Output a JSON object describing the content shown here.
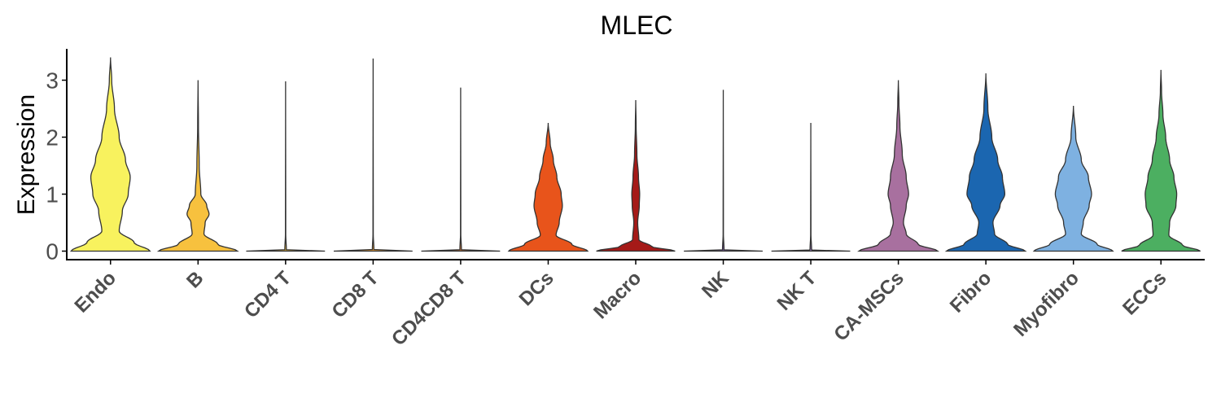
{
  "chart_data": {
    "type": "violin",
    "title": "MLEC",
    "ylabel": "Expression",
    "xlabel": "",
    "ylim": [
      -0.15,
      3.55
    ],
    "yticks": [
      0,
      1,
      2,
      3
    ],
    "grid": false,
    "legend": "none",
    "categories": [
      "Endo",
      "B",
      "CD4 T",
      "CD8 T",
      "CD4CD8 T",
      "DCs",
      "Macro",
      "NK",
      "NK T",
      "CA-MSCs",
      "Fibro",
      "Myofibro",
      "ECCs"
    ],
    "colors": [
      "#F8F25E",
      "#F7C13E",
      "#F7C13E",
      "#F4A43A",
      "#EE8133",
      "#E8541B",
      "#A51A18",
      "#7A5AA6",
      "#8E6FB1",
      "#A8709F",
      "#1B66B0",
      "#7EB1E1",
      "#4CAF61"
    ],
    "series": [
      {
        "name": "Endo",
        "max": 3.4,
        "profile": [
          [
            0,
            1.0
          ],
          [
            0.15,
            0.6
          ],
          [
            0.35,
            0.22
          ],
          [
            0.7,
            0.3
          ],
          [
            1.0,
            0.45
          ],
          [
            1.3,
            0.5
          ],
          [
            1.6,
            0.38
          ],
          [
            2.0,
            0.22
          ],
          [
            2.5,
            0.1
          ],
          [
            3.0,
            0.03
          ],
          [
            3.4,
            0
          ]
        ]
      },
      {
        "name": "B",
        "max": 3.0,
        "profile": [
          [
            0,
            1.0
          ],
          [
            0.12,
            0.5
          ],
          [
            0.3,
            0.15
          ],
          [
            0.5,
            0.18
          ],
          [
            0.65,
            0.28
          ],
          [
            0.8,
            0.22
          ],
          [
            1.0,
            0.07
          ],
          [
            1.5,
            0.03
          ],
          [
            2.2,
            0.01
          ],
          [
            3.0,
            0
          ]
        ]
      },
      {
        "name": "CD4 T",
        "max": 2.98,
        "profile": [
          [
            0,
            1.0
          ],
          [
            0.02,
            0.02
          ],
          [
            0.3,
            0.004
          ],
          [
            2.98,
            0
          ]
        ]
      },
      {
        "name": "CD8 T",
        "max": 3.38,
        "profile": [
          [
            0,
            1.0
          ],
          [
            0.02,
            0.02
          ],
          [
            0.3,
            0.004
          ],
          [
            3.38,
            0
          ]
        ]
      },
      {
        "name": "CD4CD8 T",
        "max": 2.87,
        "profile": [
          [
            0,
            1.0
          ],
          [
            0.02,
            0.02
          ],
          [
            0.3,
            0.004
          ],
          [
            2.87,
            0
          ]
        ]
      },
      {
        "name": "DCs",
        "max": 2.25,
        "profile": [
          [
            0,
            1.0
          ],
          [
            0.12,
            0.6
          ],
          [
            0.28,
            0.2
          ],
          [
            0.5,
            0.28
          ],
          [
            0.8,
            0.36
          ],
          [
            1.0,
            0.33
          ],
          [
            1.3,
            0.22
          ],
          [
            1.6,
            0.13
          ],
          [
            1.9,
            0.05
          ],
          [
            2.25,
            0
          ]
        ]
      },
      {
        "name": "Macro",
        "max": 2.65,
        "profile": [
          [
            0,
            1.0
          ],
          [
            0.08,
            0.4
          ],
          [
            0.2,
            0.08
          ],
          [
            0.5,
            0.05
          ],
          [
            0.8,
            0.09
          ],
          [
            1.0,
            0.1
          ],
          [
            1.3,
            0.07
          ],
          [
            1.7,
            0.03
          ],
          [
            2.2,
            0.01
          ],
          [
            2.65,
            0
          ]
        ]
      },
      {
        "name": "NK",
        "max": 2.83,
        "profile": [
          [
            0,
            1.0
          ],
          [
            0.02,
            0.02
          ],
          [
            0.3,
            0.004
          ],
          [
            2.83,
            0
          ]
        ]
      },
      {
        "name": "NK T",
        "max": 2.25,
        "profile": [
          [
            0,
            1.0
          ],
          [
            0.02,
            0.02
          ],
          [
            0.3,
            0.004
          ],
          [
            2.25,
            0
          ]
        ]
      },
      {
        "name": "CA-MSCs",
        "max": 3.0,
        "profile": [
          [
            0,
            1.0
          ],
          [
            0.12,
            0.5
          ],
          [
            0.3,
            0.2
          ],
          [
            0.5,
            0.13
          ],
          [
            0.8,
            0.2
          ],
          [
            1.0,
            0.26
          ],
          [
            1.3,
            0.2
          ],
          [
            1.7,
            0.1
          ],
          [
            2.2,
            0.04
          ],
          [
            2.6,
            0.015
          ],
          [
            3.0,
            0
          ]
        ]
      },
      {
        "name": "Fibro",
        "max": 3.12,
        "profile": [
          [
            0,
            1.0
          ],
          [
            0.12,
            0.55
          ],
          [
            0.3,
            0.22
          ],
          [
            0.5,
            0.18
          ],
          [
            0.8,
            0.36
          ],
          [
            1.0,
            0.48
          ],
          [
            1.3,
            0.42
          ],
          [
            1.6,
            0.3
          ],
          [
            2.0,
            0.15
          ],
          [
            2.5,
            0.05
          ],
          [
            3.12,
            0
          ]
        ]
      },
      {
        "name": "Myofibro",
        "max": 2.55,
        "profile": [
          [
            0,
            1.0
          ],
          [
            0.12,
            0.6
          ],
          [
            0.3,
            0.2
          ],
          [
            0.5,
            0.25
          ],
          [
            0.8,
            0.4
          ],
          [
            1.0,
            0.46
          ],
          [
            1.3,
            0.38
          ],
          [
            1.6,
            0.2
          ],
          [
            2.0,
            0.06
          ],
          [
            2.55,
            0
          ]
        ]
      },
      {
        "name": "ECCs",
        "max": 3.18,
        "profile": [
          [
            0,
            1.0
          ],
          [
            0.1,
            0.55
          ],
          [
            0.28,
            0.2
          ],
          [
            0.5,
            0.22
          ],
          [
            0.8,
            0.38
          ],
          [
            1.0,
            0.4
          ],
          [
            1.3,
            0.33
          ],
          [
            1.6,
            0.22
          ],
          [
            2.0,
            0.12
          ],
          [
            2.4,
            0.05
          ],
          [
            2.8,
            0.015
          ],
          [
            3.18,
            0
          ]
        ]
      }
    ]
  }
}
